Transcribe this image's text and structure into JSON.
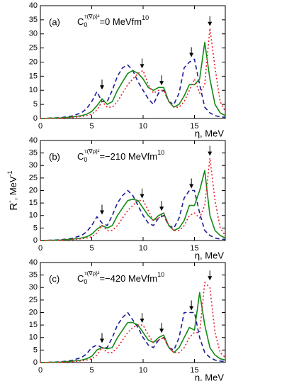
{
  "chart_data": [
    {
      "type": "line",
      "label": "(a)",
      "coupling_symbol": "C",
      "coupling_sub": "0",
      "coupling_sup": "τ(∇ρ)²",
      "coupling_text": "=0 MeVfm",
      "coupling_exp": "10",
      "xlabel": "η, MeV",
      "xlim": [
        0,
        18
      ],
      "ylim": [
        0,
        40
      ],
      "xticks": [
        0,
        5,
        10,
        15
      ],
      "yticks": [
        0,
        5,
        10,
        15,
        20,
        25,
        30,
        35,
        40
      ],
      "arrows": [
        6,
        9.9,
        11.8,
        14.7,
        16.5
      ],
      "x": [
        0,
        2,
        3,
        4,
        4.5,
        5,
        5.5,
        6,
        6.5,
        7,
        7.5,
        8,
        8.5,
        9,
        9.5,
        10,
        10.5,
        11,
        11.5,
        12,
        12.5,
        13,
        13.5,
        14,
        14.5,
        15,
        15.5,
        16,
        16.5,
        17,
        17.5,
        18
      ],
      "series": [
        {
          "color": "#1c1c96",
          "dash": "6,4",
          "values": [
            0,
            0.3,
            0.8,
            2,
            3.5,
            6,
            9.5,
            6,
            6,
            10,
            15,
            18,
            19,
            17,
            13,
            10,
            7,
            5,
            9,
            10,
            6,
            5,
            9,
            18,
            20,
            21,
            12,
            4,
            2,
            1,
            0.6,
            0.4
          ]
        },
        {
          "color": "#138a13",
          "dash": "none",
          "values": [
            0,
            0.2,
            0.5,
            1,
            1.5,
            2.5,
            4.5,
            7,
            5,
            6,
            10,
            13,
            16,
            17,
            16,
            14,
            11,
            10,
            11,
            11,
            6,
            4,
            5,
            8,
            12,
            12,
            14,
            27,
            14,
            5,
            2,
            1
          ]
        },
        {
          "color": "#e8202a",
          "dash": "2,3",
          "values": [
            0,
            0.1,
            0.3,
            0.7,
            1,
            1.5,
            3,
            6,
            4,
            4,
            6,
            9,
            12,
            14,
            16,
            17,
            12,
            9,
            10,
            10,
            6,
            4,
            4,
            6,
            10,
            14,
            9,
            12,
            32,
            18,
            6,
            2.5
          ]
        }
      ]
    },
    {
      "type": "line",
      "label": "(b)",
      "coupling_symbol": "C",
      "coupling_sub": "0",
      "coupling_sup": "τ(∇ρ)²",
      "coupling_text": "=−210 MeVfm",
      "coupling_exp": "10",
      "ylabel": "R",
      "ylabel_sup": "-",
      "ylabel_rest": ", MeV",
      "ylabel_rest_sup": "-1",
      "xlabel": "η, MeV",
      "xlim": [
        0,
        18
      ],
      "ylim": [
        0,
        40
      ],
      "xticks": [
        0,
        5,
        10,
        15
      ],
      "yticks": [
        0,
        5,
        10,
        15,
        20,
        25,
        30,
        35,
        40
      ],
      "arrows": [
        6,
        9.9,
        11.8,
        14.7,
        16.5
      ],
      "x": [
        0,
        2,
        3,
        4,
        4.5,
        5,
        5.5,
        6,
        6.5,
        7,
        7.5,
        8,
        8.5,
        9,
        9.5,
        10,
        10.5,
        11,
        11.5,
        12,
        12.5,
        13,
        13.5,
        14,
        14.5,
        15,
        15.5,
        16,
        16.5,
        17,
        17.5,
        18
      ],
      "series": [
        {
          "color": "#1c1c96",
          "dash": "6,4",
          "values": [
            0,
            0.3,
            0.8,
            2,
            3.5,
            6,
            9.5,
            7,
            6,
            10,
            15,
            18,
            20,
            18,
            14,
            10,
            7,
            6,
            9,
            10,
            6,
            5,
            9,
            17,
            20,
            20,
            11,
            4,
            2,
            1,
            0.6,
            0.4
          ]
        },
        {
          "color": "#138a13",
          "dash": "none",
          "values": [
            0,
            0.2,
            0.5,
            1,
            1.5,
            2.5,
            4.5,
            6,
            5,
            6,
            10,
            13,
            16,
            16.5,
            16,
            13,
            10,
            8,
            10,
            11,
            6,
            4,
            5,
            8,
            14,
            14,
            20,
            28,
            10,
            4,
            2,
            1
          ]
        },
        {
          "color": "#e8202a",
          "dash": "2,3",
          "values": [
            0,
            0.1,
            0.3,
            0.7,
            1,
            1.5,
            3,
            6,
            4,
            4,
            6,
            9,
            12,
            14,
            16,
            16,
            12,
            8,
            9,
            11,
            6,
            4,
            4,
            6,
            10,
            11,
            9,
            14,
            33,
            16,
            5,
            2
          ]
        }
      ]
    },
    {
      "type": "line",
      "label": "(c)",
      "coupling_symbol": "C",
      "coupling_sub": "0",
      "coupling_sup": "τ(∇ρ)²",
      "coupling_text": "=−420 MeVfm",
      "coupling_exp": "10",
      "xlabel": "η, MeV",
      "xlim": [
        0,
        18
      ],
      "ylim": [
        0,
        40
      ],
      "xticks": [
        0,
        5,
        10,
        15
      ],
      "yticks": [
        0,
        5,
        10,
        15,
        20,
        25,
        30,
        35,
        40
      ],
      "arrows": [
        6,
        9.9,
        11.8,
        14.7,
        16.5
      ],
      "x": [
        0,
        2,
        3,
        4,
        4.5,
        5,
        5.5,
        6,
        6.5,
        7,
        7.5,
        8,
        8.5,
        9,
        9.5,
        10,
        10.5,
        11,
        11.5,
        12,
        12.5,
        13,
        13.5,
        14,
        14.5,
        15,
        15.5,
        16,
        16.5,
        17,
        17.5,
        18
      ],
      "series": [
        {
          "color": "#1c1c96",
          "dash": "6,4",
          "values": [
            0,
            0.3,
            0.8,
            2,
            3.5,
            6,
            7,
            6,
            6,
            10,
            15,
            18,
            20,
            17,
            14,
            10,
            7,
            6,
            9,
            10,
            6,
            5,
            10,
            20,
            20,
            20,
            10,
            4,
            2,
            1,
            0.6,
            0.4
          ]
        },
        {
          "color": "#138a13",
          "dash": "none",
          "values": [
            0,
            0.2,
            0.5,
            1,
            1.5,
            2.5,
            5,
            6,
            5.5,
            6,
            10,
            13,
            16,
            16,
            15,
            12,
            9,
            8,
            10,
            11,
            6,
            4,
            6,
            10,
            14,
            13,
            28,
            15,
            6,
            3,
            1.5,
            1
          ]
        },
        {
          "color": "#e8202a",
          "dash": "2,3",
          "values": [
            0,
            0.1,
            0.3,
            0.7,
            1,
            1.5,
            3,
            6,
            4,
            4,
            6,
            9,
            12,
            14,
            15,
            15,
            11,
            8,
            9,
            10,
            6,
            4,
            4,
            6,
            10,
            12,
            12,
            32,
            30,
            12,
            4,
            2
          ]
        }
      ]
    }
  ]
}
